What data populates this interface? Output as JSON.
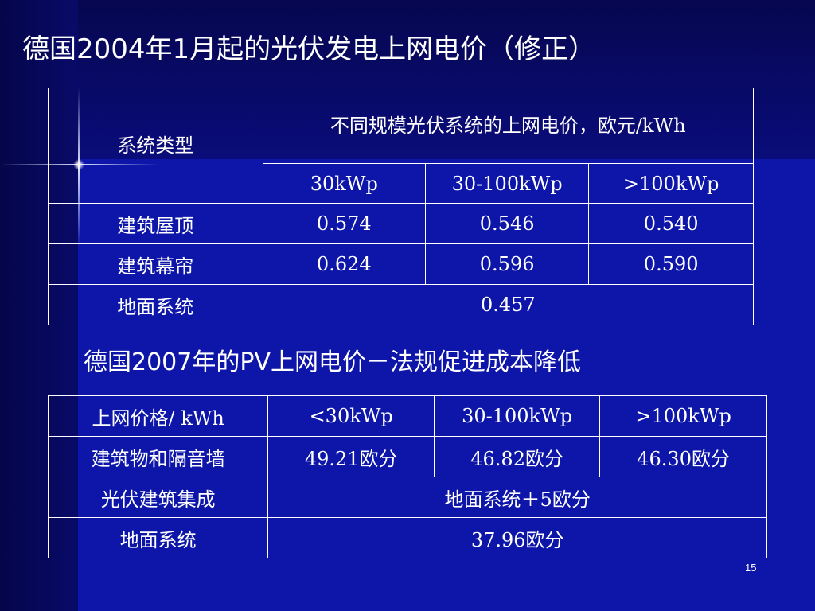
{
  "slide": {
    "title": "德国2004年1月起的光伏发电上网电价（修正）",
    "subtitle": "德国2007年的PV上网电价－法规促进成本降低",
    "page_number": "15"
  },
  "table1": {
    "header_system_type": "系统类型",
    "header_price_group": "不同规模光伏系统的上网电价，欧元/kWh",
    "sizes": [
      "30kWp",
      "30-100kWp",
      ">100kWp"
    ],
    "rows": [
      {
        "label": "建筑屋顶",
        "values": [
          "0.574",
          "0.546",
          "0.540"
        ]
      },
      {
        "label": "建筑幕帘",
        "values": [
          "0.624",
          "0.596",
          "0.590"
        ]
      }
    ],
    "ground_row": {
      "label": "地面系统",
      "value": "0.457"
    }
  },
  "table2": {
    "header_label": "上网价格/ kWh",
    "sizes": [
      "<30kWp",
      "30-100kWp",
      ">100kWp"
    ],
    "building_row": {
      "label": "建筑物和隔音墙",
      "values": [
        "49.21欧分",
        "46.82欧分",
        "46.30欧分"
      ]
    },
    "bipv_row": {
      "label": "光伏建筑集成",
      "value": "地面系统＋5欧分"
    },
    "ground_row": {
      "label": "地面系统",
      "value": "37.96欧分"
    }
  }
}
